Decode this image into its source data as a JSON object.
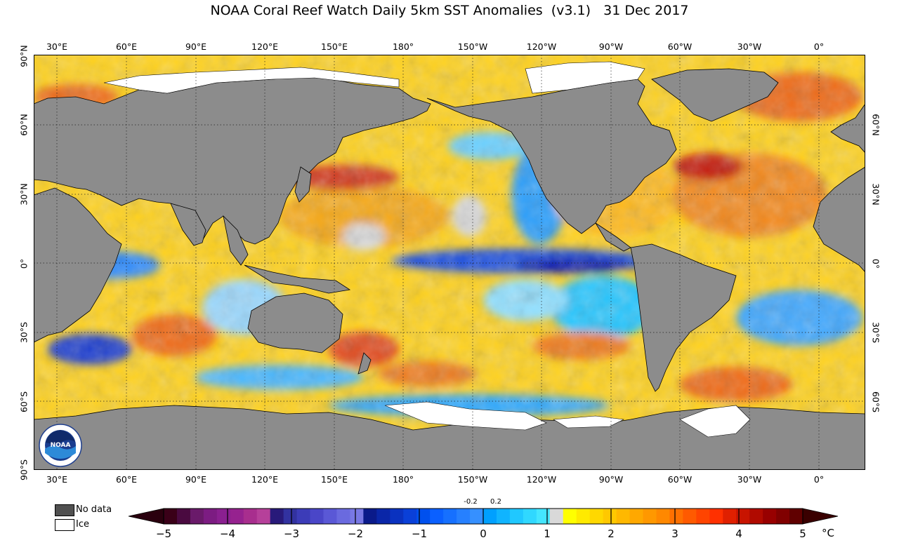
{
  "title": "NOAA Coral Reef Watch Daily 5km SST Anomalies  (v3.1)   31 Dec 2017",
  "longitude_labels": [
    "30°E",
    "60°E",
    "90°E",
    "120°E",
    "150°E",
    "180°",
    "150°W",
    "120°W",
    "90°W",
    "60°W",
    "30°W",
    "0°"
  ],
  "latitude_labels_left": [
    "90°N",
    "60°N",
    "30°N",
    "0°",
    "30°S",
    "60°S",
    "90°S"
  ],
  "latitude_labels_right": [
    "60°N",
    "30°N",
    "0°",
    "30°S",
    "60°S"
  ],
  "legend": {
    "no_data": "No data",
    "ice": "Ice"
  },
  "colors": {
    "land": "#8c8c8c",
    "no_data": "#505050",
    "ice": "#ffffff",
    "neutral": "#d9d9d9"
  },
  "colorbar": {
    "ticks": [
      "−5",
      "−4",
      "−3",
      "−2",
      "−1",
      "0",
      "1",
      "2",
      "3",
      "4",
      "5"
    ],
    "small_ticks": [
      "-0.2",
      "0.2"
    ],
    "unit": "°C",
    "colors": [
      "#3a0018",
      "#4a0a40",
      "#6a1a6a",
      "#7c1c82",
      "#8a2090",
      "#96228f",
      "#a82e8e",
      "#b6409a",
      "#281a7a",
      "#3232a0",
      "#3c3cb8",
      "#4a46c8",
      "#5a58d6",
      "#6a6adf",
      "#7878e4",
      "#0a1a8a",
      "#0a26a8",
      "#0a32c0",
      "#0a40d8",
      "#0050ee",
      "#0a60ff",
      "#1670ff",
      "#2680ff",
      "#3690ff",
      "#00a0ff",
      "#10b4ff",
      "#20c8ff",
      "#30d8ff",
      "#44e6ff",
      "#d9d9d9",
      "#ffff00",
      "#ffea00",
      "#ffd800",
      "#ffc800",
      "#ffb800",
      "#ffa800",
      "#ff9800",
      "#ff8800",
      "#ff7000",
      "#ff5a00",
      "#ff4400",
      "#ff3000",
      "#e02000",
      "#c81400",
      "#b00a00",
      "#980000",
      "#800000",
      "#600000"
    ]
  },
  "logo_text": "NOAA"
}
